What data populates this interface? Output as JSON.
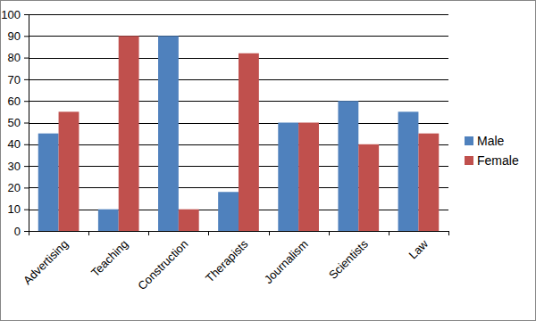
{
  "chart_data": {
    "type": "bar",
    "categories": [
      "Advertising",
      "Teaching",
      "Construction",
      "Therapists",
      "Journalism",
      "Scientists",
      "Law"
    ],
    "series": [
      {
        "name": "Male",
        "color": "#4f81bd",
        "values": [
          45,
          10,
          90,
          18,
          50,
          60,
          55
        ]
      },
      {
        "name": "Female",
        "color": "#c0504d",
        "values": [
          55,
          90,
          10,
          82,
          50,
          40,
          45
        ]
      }
    ],
    "ylim": [
      0,
      100
    ],
    "yticks": [
      0,
      10,
      20,
      30,
      40,
      50,
      60,
      70,
      80,
      90,
      100
    ],
    "grid": true,
    "legend": "right"
  }
}
